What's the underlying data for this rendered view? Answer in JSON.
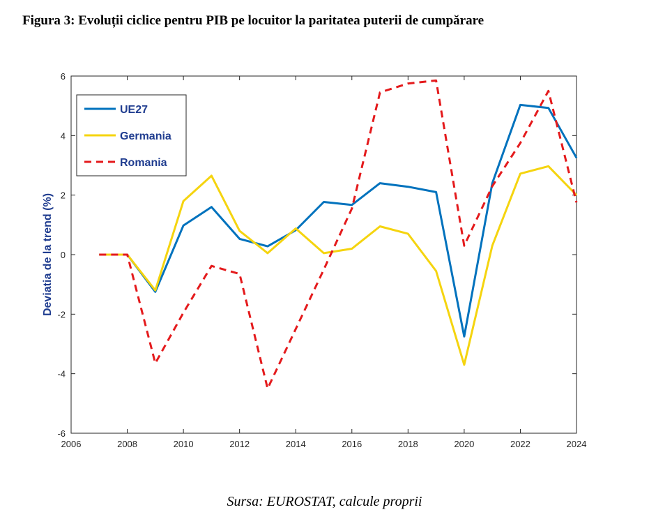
{
  "figure": {
    "title": "Figura 3: Evoluții ciclice pentru PIB pe locuitor la paritatea puterii de cumpărare",
    "source": "Sursa: EUROSTAT, calcule proprii"
  },
  "chart_data": {
    "type": "line",
    "title": "",
    "xlabel": "",
    "ylabel": "Deviatia de la trend (%)",
    "xlim": [
      2006,
      2024
    ],
    "ylim": [
      -6,
      6
    ],
    "xticks": [
      "2006",
      "2008",
      "2010",
      "2012",
      "2014",
      "2016",
      "2018",
      "2020",
      "2022",
      "2024"
    ],
    "yticks": [
      "-6",
      "-4",
      "-2",
      "0",
      "2",
      "4",
      "6"
    ],
    "x": [
      2007,
      2008,
      2009,
      2010,
      2011,
      2012,
      2013,
      2014,
      2015,
      2016,
      2017,
      2018,
      2019,
      2020,
      2021,
      2022,
      2023,
      2024
    ],
    "grid": false,
    "legend_position": "top-left",
    "series": [
      {
        "name": "UE27",
        "color": "#0072BD",
        "dash": "solid",
        "values": [
          0,
          0,
          -1.25,
          0.98,
          1.6,
          0.53,
          0.28,
          0.82,
          1.77,
          1.67,
          2.4,
          2.28,
          2.1,
          -2.75,
          2.4,
          5.03,
          4.93,
          3.25
        ]
      },
      {
        "name": "Germania",
        "color": "#F5D40F",
        "dash": "solid",
        "values": [
          0,
          0,
          -1.2,
          1.8,
          2.65,
          0.8,
          0.05,
          0.88,
          0.05,
          0.2,
          0.95,
          0.7,
          -0.55,
          -3.7,
          0.3,
          2.72,
          2.97,
          2.0
        ]
      },
      {
        "name": "Romania",
        "color": "#E41A1C",
        "dash": "dashed",
        "values": [
          0,
          0,
          -3.65,
          -1.95,
          -0.38,
          -0.65,
          -4.5,
          -2.5,
          -0.5,
          1.55,
          5.45,
          5.75,
          5.85,
          0.3,
          2.3,
          3.75,
          5.5,
          1.75
        ]
      }
    ]
  }
}
